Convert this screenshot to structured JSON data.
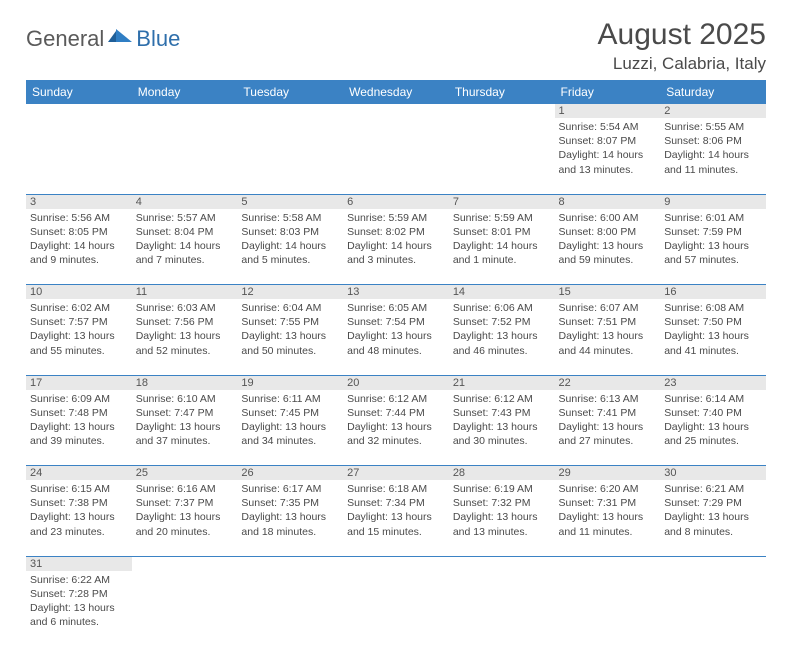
{
  "logo": {
    "part1": "General",
    "part2": "Blue"
  },
  "title": "August 2025",
  "location": "Luzzi, Calabria, Italy",
  "colors": {
    "header_bg": "#3b82c4",
    "header_text": "#ffffff",
    "daynum_bg": "#e8e8e8",
    "border": "#3b82c4",
    "text": "#4a4a4a",
    "logo_gray": "#5a5a5a",
    "logo_blue": "#2f6fab"
  },
  "day_headers": [
    "Sunday",
    "Monday",
    "Tuesday",
    "Wednesday",
    "Thursday",
    "Friday",
    "Saturday"
  ],
  "weeks": [
    [
      null,
      null,
      null,
      null,
      null,
      {
        "n": "1",
        "sunrise": "Sunrise: 5:54 AM",
        "sunset": "Sunset: 8:07 PM",
        "day1": "Daylight: 14 hours",
        "day2": "and 13 minutes."
      },
      {
        "n": "2",
        "sunrise": "Sunrise: 5:55 AM",
        "sunset": "Sunset: 8:06 PM",
        "day1": "Daylight: 14 hours",
        "day2": "and 11 minutes."
      }
    ],
    [
      {
        "n": "3",
        "sunrise": "Sunrise: 5:56 AM",
        "sunset": "Sunset: 8:05 PM",
        "day1": "Daylight: 14 hours",
        "day2": "and 9 minutes."
      },
      {
        "n": "4",
        "sunrise": "Sunrise: 5:57 AM",
        "sunset": "Sunset: 8:04 PM",
        "day1": "Daylight: 14 hours",
        "day2": "and 7 minutes."
      },
      {
        "n": "5",
        "sunrise": "Sunrise: 5:58 AM",
        "sunset": "Sunset: 8:03 PM",
        "day1": "Daylight: 14 hours",
        "day2": "and 5 minutes."
      },
      {
        "n": "6",
        "sunrise": "Sunrise: 5:59 AM",
        "sunset": "Sunset: 8:02 PM",
        "day1": "Daylight: 14 hours",
        "day2": "and 3 minutes."
      },
      {
        "n": "7",
        "sunrise": "Sunrise: 5:59 AM",
        "sunset": "Sunset: 8:01 PM",
        "day1": "Daylight: 14 hours",
        "day2": "and 1 minute."
      },
      {
        "n": "8",
        "sunrise": "Sunrise: 6:00 AM",
        "sunset": "Sunset: 8:00 PM",
        "day1": "Daylight: 13 hours",
        "day2": "and 59 minutes."
      },
      {
        "n": "9",
        "sunrise": "Sunrise: 6:01 AM",
        "sunset": "Sunset: 7:59 PM",
        "day1": "Daylight: 13 hours",
        "day2": "and 57 minutes."
      }
    ],
    [
      {
        "n": "10",
        "sunrise": "Sunrise: 6:02 AM",
        "sunset": "Sunset: 7:57 PM",
        "day1": "Daylight: 13 hours",
        "day2": "and 55 minutes."
      },
      {
        "n": "11",
        "sunrise": "Sunrise: 6:03 AM",
        "sunset": "Sunset: 7:56 PM",
        "day1": "Daylight: 13 hours",
        "day2": "and 52 minutes."
      },
      {
        "n": "12",
        "sunrise": "Sunrise: 6:04 AM",
        "sunset": "Sunset: 7:55 PM",
        "day1": "Daylight: 13 hours",
        "day2": "and 50 minutes."
      },
      {
        "n": "13",
        "sunrise": "Sunrise: 6:05 AM",
        "sunset": "Sunset: 7:54 PM",
        "day1": "Daylight: 13 hours",
        "day2": "and 48 minutes."
      },
      {
        "n": "14",
        "sunrise": "Sunrise: 6:06 AM",
        "sunset": "Sunset: 7:52 PM",
        "day1": "Daylight: 13 hours",
        "day2": "and 46 minutes."
      },
      {
        "n": "15",
        "sunrise": "Sunrise: 6:07 AM",
        "sunset": "Sunset: 7:51 PM",
        "day1": "Daylight: 13 hours",
        "day2": "and 44 minutes."
      },
      {
        "n": "16",
        "sunrise": "Sunrise: 6:08 AM",
        "sunset": "Sunset: 7:50 PM",
        "day1": "Daylight: 13 hours",
        "day2": "and 41 minutes."
      }
    ],
    [
      {
        "n": "17",
        "sunrise": "Sunrise: 6:09 AM",
        "sunset": "Sunset: 7:48 PM",
        "day1": "Daylight: 13 hours",
        "day2": "and 39 minutes."
      },
      {
        "n": "18",
        "sunrise": "Sunrise: 6:10 AM",
        "sunset": "Sunset: 7:47 PM",
        "day1": "Daylight: 13 hours",
        "day2": "and 37 minutes."
      },
      {
        "n": "19",
        "sunrise": "Sunrise: 6:11 AM",
        "sunset": "Sunset: 7:45 PM",
        "day1": "Daylight: 13 hours",
        "day2": "and 34 minutes."
      },
      {
        "n": "20",
        "sunrise": "Sunrise: 6:12 AM",
        "sunset": "Sunset: 7:44 PM",
        "day1": "Daylight: 13 hours",
        "day2": "and 32 minutes."
      },
      {
        "n": "21",
        "sunrise": "Sunrise: 6:12 AM",
        "sunset": "Sunset: 7:43 PM",
        "day1": "Daylight: 13 hours",
        "day2": "and 30 minutes."
      },
      {
        "n": "22",
        "sunrise": "Sunrise: 6:13 AM",
        "sunset": "Sunset: 7:41 PM",
        "day1": "Daylight: 13 hours",
        "day2": "and 27 minutes."
      },
      {
        "n": "23",
        "sunrise": "Sunrise: 6:14 AM",
        "sunset": "Sunset: 7:40 PM",
        "day1": "Daylight: 13 hours",
        "day2": "and 25 minutes."
      }
    ],
    [
      {
        "n": "24",
        "sunrise": "Sunrise: 6:15 AM",
        "sunset": "Sunset: 7:38 PM",
        "day1": "Daylight: 13 hours",
        "day2": "and 23 minutes."
      },
      {
        "n": "25",
        "sunrise": "Sunrise: 6:16 AM",
        "sunset": "Sunset: 7:37 PM",
        "day1": "Daylight: 13 hours",
        "day2": "and 20 minutes."
      },
      {
        "n": "26",
        "sunrise": "Sunrise: 6:17 AM",
        "sunset": "Sunset: 7:35 PM",
        "day1": "Daylight: 13 hours",
        "day2": "and 18 minutes."
      },
      {
        "n": "27",
        "sunrise": "Sunrise: 6:18 AM",
        "sunset": "Sunset: 7:34 PM",
        "day1": "Daylight: 13 hours",
        "day2": "and 15 minutes."
      },
      {
        "n": "28",
        "sunrise": "Sunrise: 6:19 AM",
        "sunset": "Sunset: 7:32 PM",
        "day1": "Daylight: 13 hours",
        "day2": "and 13 minutes."
      },
      {
        "n": "29",
        "sunrise": "Sunrise: 6:20 AM",
        "sunset": "Sunset: 7:31 PM",
        "day1": "Daylight: 13 hours",
        "day2": "and 11 minutes."
      },
      {
        "n": "30",
        "sunrise": "Sunrise: 6:21 AM",
        "sunset": "Sunset: 7:29 PM",
        "day1": "Daylight: 13 hours",
        "day2": "and 8 minutes."
      }
    ],
    [
      {
        "n": "31",
        "sunrise": "Sunrise: 6:22 AM",
        "sunset": "Sunset: 7:28 PM",
        "day1": "Daylight: 13 hours",
        "day2": "and 6 minutes."
      },
      null,
      null,
      null,
      null,
      null,
      null
    ]
  ]
}
